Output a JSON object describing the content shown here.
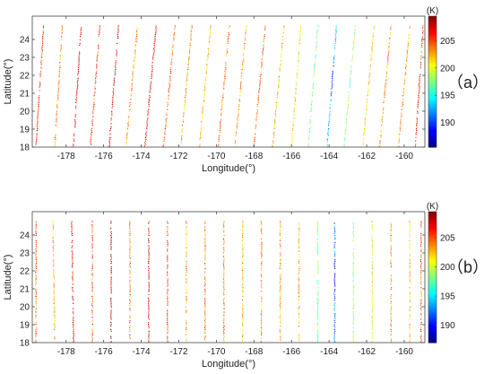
{
  "chart_data": [
    {
      "type": "scatter",
      "panel_label": "（a）",
      "xlabel": "Longitude(°)",
      "ylabel": "Latitude(°)",
      "xlim": [
        -179.8,
        -158.9
      ],
      "ylim": [
        18.0,
        25.3
      ],
      "xticks": [
        -178,
        -176,
        -174,
        -172,
        -170,
        -168,
        -166,
        -164,
        -162,
        -160
      ],
      "yticks": [
        18,
        19,
        20,
        21,
        22,
        23,
        24
      ],
      "colorbar": {
        "unit": "(K)",
        "range": [
          185.5,
          209.5
        ],
        "ticks": [
          190,
          195,
          200,
          205
        ]
      },
      "grid": false,
      "tracks": [
        {
          "lon_bottom": -179.6,
          "lon_top": -179.2,
          "temp": 206
        },
        {
          "lon_bottom": -178.6,
          "lon_top": -178.2,
          "temp": 203
        },
        {
          "lon_bottom": -177.6,
          "lon_top": -177.2,
          "temp": 207
        },
        {
          "lon_bottom": -176.7,
          "lon_top": -176.2,
          "temp": 205
        },
        {
          "lon_bottom": -175.7,
          "lon_top": -175.2,
          "temp": 207
        },
        {
          "lon_bottom": -174.8,
          "lon_top": -174.2,
          "temp": 203
        },
        {
          "lon_bottom": -173.8,
          "lon_top": -173.2,
          "temp": 207
        },
        {
          "lon_bottom": -172.8,
          "lon_top": -172.2,
          "temp": 204
        },
        {
          "lon_bottom": -171.9,
          "lon_top": -171.3,
          "temp": 203
        },
        {
          "lon_bottom": -170.9,
          "lon_top": -170.3,
          "temp": 202
        },
        {
          "lon_bottom": -169.9,
          "lon_top": -169.3,
          "temp": 204
        },
        {
          "lon_bottom": -169.0,
          "lon_top": -168.4,
          "temp": 203
        },
        {
          "lon_bottom": -168.0,
          "lon_top": -167.4,
          "temp": 204
        },
        {
          "lon_bottom": -167.0,
          "lon_top": -166.4,
          "temp": 202
        },
        {
          "lon_bottom": -166.0,
          "lon_top": -165.5,
          "temp": 201
        },
        {
          "lon_bottom": -165.1,
          "lon_top": -164.6,
          "temp": 197
        },
        {
          "lon_bottom": -164.1,
          "lon_top": -163.6,
          "temp": 193
        },
        {
          "lon_bottom": -163.2,
          "lon_top": -162.6,
          "temp": 198
        },
        {
          "lon_bottom": -162.2,
          "lon_top": -161.6,
          "temp": 201
        },
        {
          "lon_bottom": -161.3,
          "lon_top": -160.7,
          "temp": 203
        },
        {
          "lon_bottom": -160.3,
          "lon_top": -159.7,
          "temp": 203
        },
        {
          "lon_bottom": -159.4,
          "lon_top": -159.0,
          "temp": 206
        }
      ]
    },
    {
      "type": "scatter",
      "panel_label": "（b）",
      "xlabel": "Longitude(°)",
      "ylabel": "Latitude(°)",
      "xlim": [
        -179.8,
        -158.9
      ],
      "ylim": [
        18.0,
        25.3
      ],
      "xticks": [
        -178,
        -176,
        -174,
        -172,
        -170,
        -168,
        -166,
        -164,
        -162,
        -160
      ],
      "yticks": [
        18,
        19,
        20,
        21,
        22,
        23,
        24
      ],
      "colorbar": {
        "unit": "(K)",
        "range": [
          187,
          209.5
        ],
        "ticks": [
          190,
          195,
          200,
          205
        ]
      },
      "grid": false,
      "tracks": [
        {
          "lon_bottom": -179.6,
          "lon_top": -179.6,
          "temp": 205
        },
        {
          "lon_bottom": -178.6,
          "lon_top": -178.7,
          "temp": 203
        },
        {
          "lon_bottom": -177.6,
          "lon_top": -177.7,
          "temp": 207
        },
        {
          "lon_bottom": -176.6,
          "lon_top": -176.6,
          "temp": 205
        },
        {
          "lon_bottom": -175.6,
          "lon_top": -175.6,
          "temp": 208
        },
        {
          "lon_bottom": -174.6,
          "lon_top": -174.6,
          "temp": 204
        },
        {
          "lon_bottom": -173.6,
          "lon_top": -173.6,
          "temp": 207
        },
        {
          "lon_bottom": -172.6,
          "lon_top": -172.6,
          "temp": 205
        },
        {
          "lon_bottom": -171.6,
          "lon_top": -171.6,
          "temp": 203
        },
        {
          "lon_bottom": -170.6,
          "lon_top": -170.6,
          "temp": 204
        },
        {
          "lon_bottom": -169.6,
          "lon_top": -169.6,
          "temp": 204
        },
        {
          "lon_bottom": -168.6,
          "lon_top": -168.6,
          "temp": 203
        },
        {
          "lon_bottom": -167.6,
          "lon_top": -167.6,
          "temp": 204
        },
        {
          "lon_bottom": -166.6,
          "lon_top": -166.6,
          "temp": 203
        },
        {
          "lon_bottom": -165.6,
          "lon_top": -165.6,
          "temp": 203
        },
        {
          "lon_bottom": -164.6,
          "lon_top": -164.6,
          "temp": 198
        },
        {
          "lon_bottom": -163.7,
          "lon_top": -163.7,
          "temp": 193
        },
        {
          "lon_bottom": -162.7,
          "lon_top": -162.7,
          "temp": 199
        },
        {
          "lon_bottom": -161.7,
          "lon_top": -161.7,
          "temp": 201
        },
        {
          "lon_bottom": -160.7,
          "lon_top": -160.7,
          "temp": 203
        },
        {
          "lon_bottom": -159.7,
          "lon_top": -159.7,
          "temp": 202
        },
        {
          "lon_bottom": -159.1,
          "lon_top": -159.1,
          "temp": 205
        }
      ]
    }
  ]
}
